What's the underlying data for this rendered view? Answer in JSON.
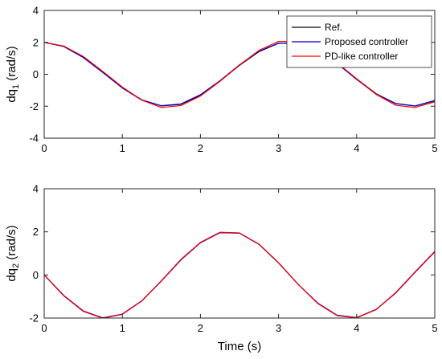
{
  "chart_data": [
    {
      "type": "line",
      "ylabel_main": "dq",
      "ylabel_sub": "1",
      "ylabel_unit": " (rad/s)",
      "xlim": [
        0,
        5
      ],
      "ylim": [
        -4,
        4
      ],
      "xticks": [
        0,
        1,
        2,
        3,
        4,
        5
      ],
      "yticks": [
        -4,
        -2,
        0,
        2,
        4
      ],
      "grid": false,
      "legend": "top-right",
      "series": [
        {
          "name": "Ref.",
          "color": "#000000",
          "x": [
            0,
            0.25,
            0.5,
            0.75,
            1.0,
            1.25,
            1.5,
            1.75,
            2.0,
            2.25,
            2.5,
            2.75,
            3.0,
            3.25,
            3.5,
            3.75,
            4.0,
            4.25,
            4.5,
            4.75,
            5.0
          ],
          "values": [
            2.0,
            1.75,
            1.08,
            0.14,
            -0.83,
            -1.6,
            -1.98,
            -1.88,
            -1.31,
            -0.43,
            0.56,
            1.42,
            1.94,
            1.96,
            1.5,
            0.7,
            -0.29,
            -1.22,
            -1.83,
            -1.99,
            -1.66
          ]
        },
        {
          "name": "Proposed controller",
          "color": "#0000cc",
          "x": [
            0,
            0.25,
            0.5,
            0.75,
            1.0,
            1.25,
            1.5,
            1.75,
            2.0,
            2.25,
            2.5,
            2.75,
            3.0,
            3.25,
            3.5,
            3.75,
            4.0,
            4.25,
            4.5,
            4.75,
            5.0
          ],
          "values": [
            2.0,
            1.74,
            1.05,
            0.11,
            -0.86,
            -1.62,
            -1.97,
            -1.86,
            -1.28,
            -0.4,
            0.59,
            1.44,
            1.95,
            1.95,
            1.48,
            0.67,
            -0.32,
            -1.25,
            -1.84,
            -1.98,
            -1.64
          ]
        },
        {
          "name": "PD-like controller",
          "color": "#ff0000",
          "x": [
            0,
            0.25,
            0.5,
            0.75,
            1.0,
            1.25,
            1.5,
            1.75,
            2.0,
            2.25,
            2.5,
            2.75,
            3.0,
            3.25,
            3.5,
            3.75,
            4.0,
            4.25,
            4.5,
            4.75,
            5.0
          ],
          "values": [
            2.0,
            1.77,
            1.12,
            0.18,
            -0.8,
            -1.62,
            -2.08,
            -1.96,
            -1.36,
            -0.44,
            0.58,
            1.5,
            2.06,
            2.06,
            1.55,
            0.72,
            -0.28,
            -1.26,
            -1.94,
            -2.08,
            -1.72
          ]
        }
      ]
    },
    {
      "type": "line",
      "ylabel_main": "dq",
      "ylabel_sub": "2",
      "ylabel_unit": " (rad/s)",
      "xlabel": "Time (s)",
      "xlim": [
        0,
        5
      ],
      "ylim": [
        -2,
        4
      ],
      "xticks": [
        0,
        1,
        2,
        3,
        4,
        5
      ],
      "yticks": [
        -2,
        0,
        2,
        4
      ],
      "grid": false,
      "series": [
        {
          "name": "Ref.",
          "color": "#000000",
          "x": [
            0,
            0.25,
            0.5,
            0.75,
            1.0,
            1.25,
            1.5,
            1.75,
            2.0,
            2.25,
            2.5,
            2.75,
            3.0,
            3.25,
            3.5,
            3.75,
            4.0,
            4.25,
            4.5,
            4.75,
            5.0
          ],
          "values": [
            0.0,
            -0.96,
            -1.68,
            -2.0,
            -1.82,
            -1.2,
            -0.28,
            0.7,
            1.5,
            1.97,
            1.94,
            1.42,
            0.56,
            -0.43,
            -1.31,
            -1.88,
            -1.98,
            -1.6,
            -0.83,
            0.14,
            1.08
          ]
        },
        {
          "name": "Proposed controller",
          "color": "#0000cc",
          "x": [
            0,
            0.25,
            0.5,
            0.75,
            1.0,
            1.25,
            1.5,
            1.75,
            2.0,
            2.25,
            2.5,
            2.75,
            3.0,
            3.25,
            3.5,
            3.75,
            4.0,
            4.25,
            4.5,
            4.75,
            5.0
          ],
          "values": [
            0.0,
            -0.95,
            -1.67,
            -1.99,
            -1.82,
            -1.2,
            -0.28,
            0.7,
            1.49,
            1.96,
            1.94,
            1.42,
            0.56,
            -0.43,
            -1.3,
            -1.87,
            -1.98,
            -1.6,
            -0.84,
            0.13,
            1.07
          ]
        },
        {
          "name": "PD-like controller",
          "color": "#ff0000",
          "x": [
            0,
            0.25,
            0.5,
            0.75,
            1.0,
            1.25,
            1.5,
            1.75,
            2.0,
            2.25,
            2.5,
            2.75,
            3.0,
            3.25,
            3.5,
            3.75,
            4.0,
            4.25,
            4.5,
            4.75,
            5.0
          ],
          "values": [
            0.0,
            -0.97,
            -1.69,
            -2.01,
            -1.83,
            -1.21,
            -0.27,
            0.72,
            1.51,
            1.98,
            1.95,
            1.43,
            0.57,
            -0.43,
            -1.32,
            -1.89,
            -1.99,
            -1.61,
            -0.82,
            0.15,
            1.09
          ]
        }
      ]
    }
  ]
}
